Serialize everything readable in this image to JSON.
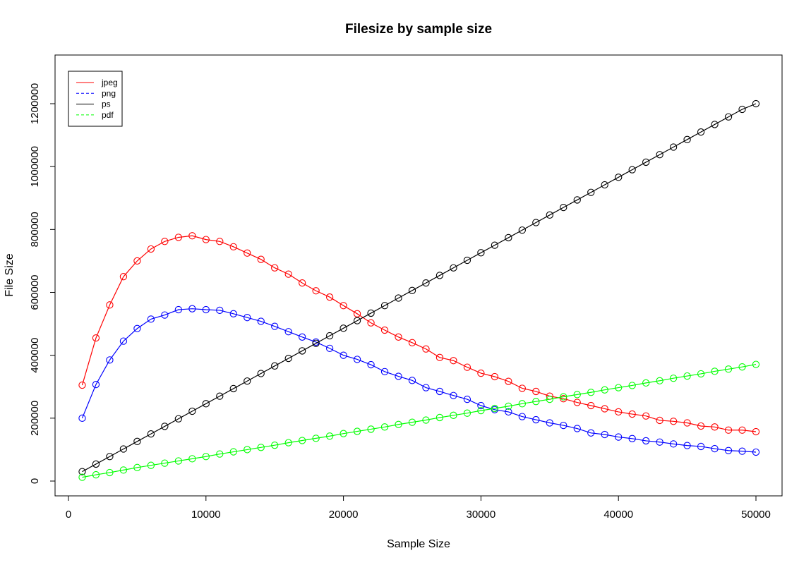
{
  "chart_data": {
    "type": "line",
    "title": "Filesize by sample size",
    "xlabel": "Sample Size",
    "ylabel": "File Size",
    "xlim": [
      0,
      51000
    ],
    "ylim": [
      -50000,
      1350000
    ],
    "x_ticks": [
      0,
      10000,
      20000,
      30000,
      40000,
      50000
    ],
    "x_tick_labels": [
      "0",
      "10000",
      "20000",
      "30000",
      "40000",
      "50000"
    ],
    "y_ticks": [
      0,
      200000,
      400000,
      600000,
      800000,
      1000000,
      1200000
    ],
    "y_tick_labels": [
      "0",
      "200000",
      "400000",
      "600000",
      "800000",
      "1000000",
      "1200000"
    ],
    "grid": false,
    "legend_position": "top-left",
    "legend": [
      {
        "name": "jpeg",
        "color": "#ff0000",
        "line": "solid"
      },
      {
        "name": "png",
        "color": "#0000ff",
        "line": "dashed"
      },
      {
        "name": "ps",
        "color": "#000000",
        "line": "solid"
      },
      {
        "name": "pdf",
        "color": "#00ff00",
        "line": "dashed"
      }
    ],
    "x": [
      1000,
      2000,
      3000,
      4000,
      5000,
      6000,
      7000,
      8000,
      9000,
      10000,
      11000,
      12000,
      13000,
      14000,
      15000,
      16000,
      17000,
      18000,
      19000,
      20000,
      21000,
      22000,
      23000,
      24000,
      25000,
      26000,
      27000,
      28000,
      29000,
      30000,
      31000,
      32000,
      33000,
      34000,
      35000,
      36000,
      37000,
      38000,
      39000,
      40000,
      41000,
      42000,
      43000,
      44000,
      45000,
      46000,
      47000,
      48000,
      49000,
      50000
    ],
    "series": [
      {
        "name": "jpeg",
        "color": "#ff0000",
        "marker": "circle",
        "values": [
          305000,
          455000,
          560000,
          650000,
          700000,
          738000,
          762000,
          775000,
          780000,
          768000,
          762000,
          745000,
          725000,
          705000,
          678000,
          658000,
          630000,
          605000,
          585000,
          558000,
          532000,
          503000,
          480000,
          458000,
          440000,
          420000,
          393000,
          383000,
          362000,
          343000,
          332000,
          317000,
          295000,
          285000,
          270000,
          262000,
          250000,
          240000,
          230000,
          220000,
          213000,
          207000,
          193000,
          190000,
          185000,
          175000,
          172000,
          162000,
          162000,
          157000
        ]
      },
      {
        "name": "png",
        "color": "#0000ff",
        "marker": "circle",
        "values": [
          200000,
          307000,
          385000,
          445000,
          485000,
          515000,
          528000,
          545000,
          548000,
          545000,
          543000,
          532000,
          520000,
          508000,
          492000,
          475000,
          458000,
          442000,
          422000,
          400000,
          387000,
          370000,
          348000,
          333000,
          320000,
          297000,
          285000,
          272000,
          260000,
          240000,
          227000,
          220000,
          205000,
          195000,
          185000,
          177000,
          167000,
          153000,
          148000,
          140000,
          135000,
          128000,
          124000,
          118000,
          113000,
          110000,
          103000,
          97000,
          95000,
          92000
        ]
      },
      {
        "name": "ps",
        "color": "#000000",
        "marker": "circle",
        "values": [
          30000,
          54000,
          78000,
          102000,
          126000,
          150000,
          174000,
          198000,
          222000,
          246000,
          270000,
          294000,
          318000,
          342000,
          366000,
          390000,
          414000,
          438000,
          462000,
          486000,
          510000,
          534000,
          558000,
          582000,
          606000,
          630000,
          654000,
          678000,
          702000,
          726000,
          750000,
          774000,
          798000,
          822000,
          846000,
          870000,
          894000,
          918000,
          942000,
          966000,
          990000,
          1014000,
          1038000,
          1062000,
          1086000,
          1110000,
          1134000,
          1158000,
          1182000,
          1200000
        ]
      },
      {
        "name": "pdf",
        "color": "#00ff00",
        "marker": "circle",
        "values": [
          12000,
          20000,
          27000,
          35000,
          43000,
          50000,
          57000,
          64000,
          71000,
          78000,
          86000,
          93000,
          100000,
          107000,
          114000,
          122000,
          129000,
          136000,
          143000,
          151000,
          158000,
          165000,
          172000,
          180000,
          187000,
          194000,
          202000,
          209000,
          216000,
          224000,
          231000,
          238000,
          246000,
          253000,
          260000,
          268000,
          275000,
          282000,
          290000,
          297000,
          304000,
          312000,
          319000,
          327000,
          334000,
          341000,
          349000,
          356000,
          363000,
          371000
        ]
      }
    ]
  }
}
